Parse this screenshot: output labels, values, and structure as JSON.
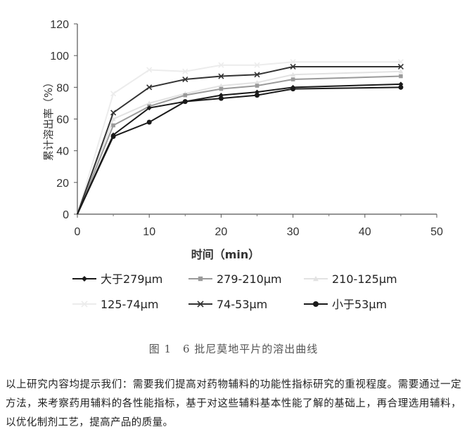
{
  "chart_data": {
    "type": "line",
    "title": "",
    "xlabel": "时间（min）",
    "ylabel": "累计溶出率（%）",
    "xlim": [
      0,
      50
    ],
    "ylim": [
      0,
      120
    ],
    "xticks": [
      "0",
      "10",
      "20",
      "30",
      "40",
      "50"
    ],
    "yticks": [
      "0",
      "20",
      "40",
      "60",
      "80",
      "100",
      "120"
    ],
    "grid": false,
    "legend_position": "bottom",
    "x": [
      0,
      5,
      10,
      15,
      20,
      25,
      30,
      45
    ],
    "series": [
      {
        "name": "大于279μm",
        "values": [
          0,
          50,
          67,
          71,
          75,
          77,
          80,
          82
        ],
        "color": "#1a1a1a",
        "marker": "diamond"
      },
      {
        "name": "279-210μm",
        "values": [
          0,
          56,
          68,
          75,
          79,
          81,
          85,
          87
        ],
        "color": "#9a9a9a",
        "marker": "square"
      },
      {
        "name": "210-125μm",
        "values": [
          0,
          60,
          70,
          76,
          81,
          83,
          88,
          90
        ],
        "color": "#e2e2e2",
        "marker": "triangle"
      },
      {
        "name": "125-74μm",
        "values": [
          0,
          76,
          91,
          90,
          94,
          94,
          96,
          96
        ],
        "color": "#ececec",
        "marker": "x"
      },
      {
        "name": "74-53μm",
        "values": [
          0,
          64,
          80,
          85,
          87,
          88,
          93,
          93
        ],
        "color": "#333333",
        "marker": "x"
      },
      {
        "name": "小于53μm",
        "values": [
          0,
          49,
          58,
          71,
          73,
          75,
          79,
          80
        ],
        "color": "#1a1a1a",
        "marker": "circle"
      }
    ]
  },
  "caption": "图 1　6 批尼莫地平片的溶出曲线",
  "paragraph": "以上研究内容均提示我们：需要我们提高对药物辅料的功能性指标研究的重视程度。需要通过一定方法，来考察药用辅料的各性能指标，基于对这些辅料基本性能了解的基础上，再合理选用辅料，以优化制剂工艺，提高产品的质量。"
}
